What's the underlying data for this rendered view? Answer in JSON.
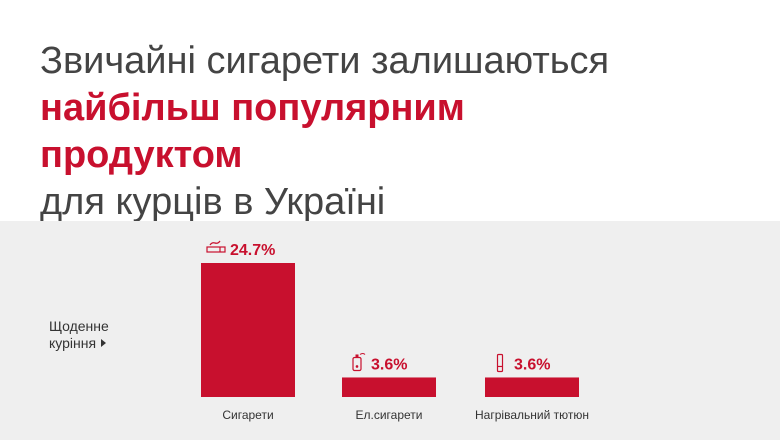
{
  "headline": {
    "line1": "Звичайні сигарети залишаються",
    "line2": "найбільш популярним",
    "line3": "продуктом",
    "line4": "для курців в Україні"
  },
  "side_label": {
    "line1": "Щоденне",
    "line2": "куріння"
  },
  "colors": {
    "accent": "#c8102e",
    "band": "#efefef",
    "text": "#444444"
  },
  "chart_data": {
    "type": "bar",
    "categories": [
      "Сигарети",
      "Ел.сигарети",
      "Нагрівальний тютюн"
    ],
    "values": [
      24.7,
      3.6,
      3.6
    ],
    "value_labels": [
      "24.7%",
      "3.6%",
      "3.6%"
    ],
    "icons": [
      "cigarette-icon",
      "e-cigarette-icon",
      "heated-tobacco-icon"
    ],
    "ylim": [
      0,
      24.7
    ],
    "grid": false,
    "legend": "none"
  }
}
